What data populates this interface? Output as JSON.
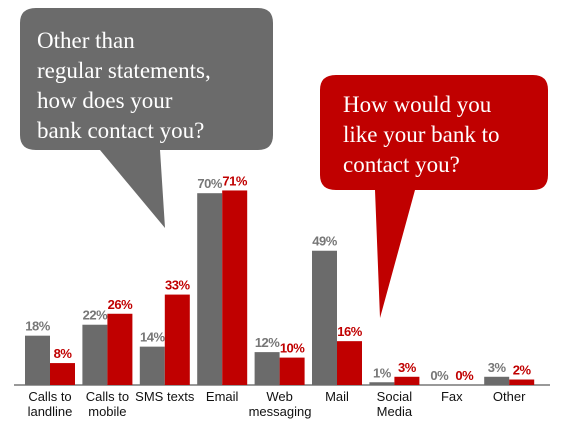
{
  "chart_data": {
    "type": "bar",
    "categories": [
      "Calls to landline",
      "Calls to mobile",
      "SMS texts",
      "Email",
      "Web messaging",
      "Mail",
      "Social Media",
      "Fax",
      "Other"
    ],
    "series": [
      {
        "name": "Other than\nregular statements,\nhow does your\nbank contact you?",
        "color": "#6b6b6b",
        "values": [
          18,
          22,
          14,
          70,
          12,
          49,
          1,
          0,
          3
        ],
        "value_labels": [
          "18%",
          "22%",
          "14%",
          "70%",
          "12%",
          "49%",
          "1%",
          "0%",
          "3%"
        ]
      },
      {
        "name": "How would you\nlike your bank to\ncontact you?",
        "color": "#c00000",
        "values": [
          8,
          26,
          33,
          71,
          10,
          16,
          3,
          0,
          2
        ],
        "value_labels": [
          "8%",
          "26%",
          "33%",
          "71%",
          "10%",
          "16%",
          "3%",
          "0%",
          "2%"
        ]
      }
    ]
  }
}
